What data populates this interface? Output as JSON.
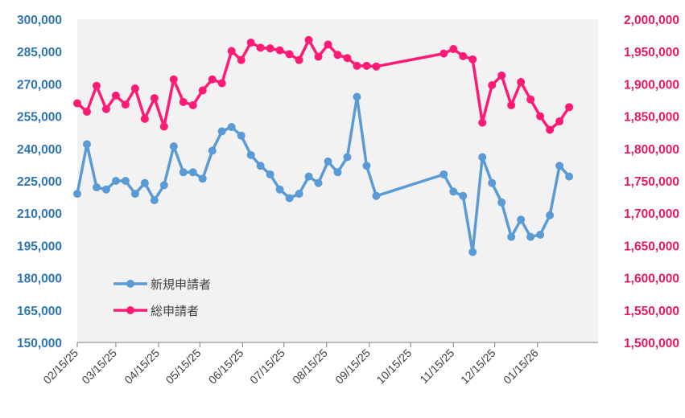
{
  "chart_data": {
    "type": "line",
    "colors": {
      "series1": "#5b9bd5",
      "series2": "#ff1a75",
      "plot_bg": "#f2f2f2",
      "left_axis": "#2e75b6",
      "right_axis": "#e8195e",
      "x_axis": "#7f7f7f"
    },
    "grid": false,
    "legend_position": "bottom-left inside plot",
    "x_axis": {
      "type": "date",
      "range": [
        "2025-02-15",
        "2026-02-28"
      ],
      "tick_labels": [
        "02/15/25",
        "03/15/25",
        "04/15/25",
        "05/15/25",
        "06/15/25",
        "07/15/25",
        "08/15/25",
        "09/15/25",
        "10/15/25",
        "11/15/25",
        "12/15/25",
        "01/15/26"
      ],
      "tick_dates": [
        "2025-02-15",
        "2025-03-15",
        "2025-04-15",
        "2025-05-15",
        "2025-06-15",
        "2025-07-15",
        "2025-08-15",
        "2025-09-15",
        "2025-10-15",
        "2025-11-15",
        "2025-12-15",
        "2026-01-15"
      ]
    },
    "y_left": {
      "range": [
        150000,
        300000
      ],
      "tick_labels": [
        "300,000",
        "285,000",
        "270,000",
        "255,000",
        "240,000",
        "225,000",
        "210,000",
        "195,000",
        "180,000",
        "165,000",
        "150,000"
      ],
      "tick_values": [
        300000,
        285000,
        270000,
        255000,
        240000,
        225000,
        210000,
        195000,
        180000,
        165000,
        150000
      ]
    },
    "y_right": {
      "range": [
        1500000,
        2000000
      ],
      "tick_labels": [
        "2,000,000",
        "1,950,000",
        "1,900,000",
        "1,850,000",
        "1,800,000",
        "1,750,000",
        "1,700,000",
        "1,650,000",
        "1,600,000",
        "1,550,000",
        "1,500,000"
      ],
      "tick_values": [
        2000000,
        1950000,
        1900000,
        1850000,
        1800000,
        1750000,
        1700000,
        1650000,
        1600000,
        1550000,
        1500000
      ]
    },
    "series": [
      {
        "name": "新規申請者",
        "axis": "left",
        "points": [
          [
            "2025-02-15",
            219000
          ],
          [
            "2025-02-22",
            242000
          ],
          [
            "2025-03-01",
            222000
          ],
          [
            "2025-03-08",
            221000
          ],
          [
            "2025-03-15",
            225000
          ],
          [
            "2025-03-22",
            225000
          ],
          [
            "2025-03-29",
            219000
          ],
          [
            "2025-04-05",
            224000
          ],
          [
            "2025-04-12",
            216000
          ],
          [
            "2025-04-19",
            223000
          ],
          [
            "2025-04-26",
            241000
          ],
          [
            "2025-05-03",
            229000
          ],
          [
            "2025-05-10",
            229000
          ],
          [
            "2025-05-17",
            226000
          ],
          [
            "2025-05-24",
            239000
          ],
          [
            "2025-05-31",
            248000
          ],
          [
            "2025-06-07",
            250000
          ],
          [
            "2025-06-14",
            246000
          ],
          [
            "2025-06-21",
            237000
          ],
          [
            "2025-06-28",
            232000
          ],
          [
            "2025-07-05",
            228000
          ],
          [
            "2025-07-12",
            221000
          ],
          [
            "2025-07-19",
            217000
          ],
          [
            "2025-07-26",
            219000
          ],
          [
            "2025-08-02",
            227000
          ],
          [
            "2025-08-09",
            224000
          ],
          [
            "2025-08-16",
            234000
          ],
          [
            "2025-08-23",
            229000
          ],
          [
            "2025-08-30",
            236000
          ],
          [
            "2025-09-06",
            264000
          ],
          [
            "2025-09-13",
            232000
          ],
          [
            "2025-09-20",
            218000
          ],
          [
            "2025-11-08",
            228000
          ],
          [
            "2025-11-15",
            220000
          ],
          [
            "2025-11-22",
            218000
          ],
          [
            "2025-11-29",
            192000
          ],
          [
            "2025-12-06",
            236000
          ],
          [
            "2025-12-13",
            224000
          ],
          [
            "2025-12-20",
            215000
          ],
          [
            "2025-12-27",
            199000
          ],
          [
            "2026-01-03",
            207000
          ],
          [
            "2026-01-10",
            199000
          ],
          [
            "2026-01-17",
            200000
          ],
          [
            "2026-01-24",
            209000
          ],
          [
            "2026-01-31",
            232000
          ],
          [
            "2026-02-07",
            227000
          ]
        ]
      },
      {
        "name": "総申請者",
        "axis": "right",
        "points": [
          [
            "2025-02-15",
            1870000
          ],
          [
            "2025-02-22",
            1857000
          ],
          [
            "2025-03-01",
            1897000
          ],
          [
            "2025-03-08",
            1861000
          ],
          [
            "2025-03-15",
            1882000
          ],
          [
            "2025-03-22",
            1868000
          ],
          [
            "2025-03-29",
            1893000
          ],
          [
            "2025-04-05",
            1846000
          ],
          [
            "2025-04-12",
            1878000
          ],
          [
            "2025-04-19",
            1834000
          ],
          [
            "2025-04-26",
            1907000
          ],
          [
            "2025-05-03",
            1872000
          ],
          [
            "2025-05-10",
            1867000
          ],
          [
            "2025-05-17",
            1890000
          ],
          [
            "2025-05-24",
            1907000
          ],
          [
            "2025-05-31",
            1901000
          ],
          [
            "2025-06-07",
            1951000
          ],
          [
            "2025-06-14",
            1937000
          ],
          [
            "2025-06-21",
            1964000
          ],
          [
            "2025-06-28",
            1956000
          ],
          [
            "2025-07-05",
            1955000
          ],
          [
            "2025-07-12",
            1952000
          ],
          [
            "2025-07-19",
            1946000
          ],
          [
            "2025-07-26",
            1937000
          ],
          [
            "2025-08-02",
            1968000
          ],
          [
            "2025-08-09",
            1942000
          ],
          [
            "2025-08-16",
            1961000
          ],
          [
            "2025-08-23",
            1945000
          ],
          [
            "2025-08-30",
            1940000
          ],
          [
            "2025-09-06",
            1928000
          ],
          [
            "2025-09-13",
            1928000
          ],
          [
            "2025-09-20",
            1927000
          ],
          [
            "2025-11-08",
            1947000
          ],
          [
            "2025-11-15",
            1954000
          ],
          [
            "2025-11-22",
            1943000
          ],
          [
            "2025-11-29",
            1938000
          ],
          [
            "2025-12-06",
            1840000
          ],
          [
            "2025-12-13",
            1898000
          ],
          [
            "2025-12-20",
            1913000
          ],
          [
            "2025-12-27",
            1867000
          ],
          [
            "2026-01-03",
            1903000
          ],
          [
            "2026-01-10",
            1876000
          ],
          [
            "2026-01-17",
            1850000
          ],
          [
            "2026-01-24",
            1829000
          ],
          [
            "2026-01-31",
            1842000
          ],
          [
            "2026-02-07",
            1864000
          ]
        ]
      }
    ]
  }
}
